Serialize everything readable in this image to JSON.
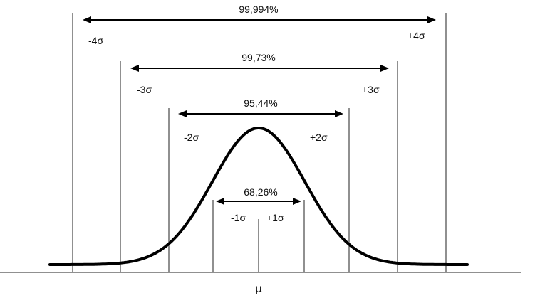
{
  "mean_label": "μ",
  "intervals": [
    {
      "k": 1,
      "percent": "68,26%",
      "minus_label": "-1σ",
      "plus_label": "+1σ"
    },
    {
      "k": 2,
      "percent": "95,44%",
      "minus_label": "-2σ",
      "plus_label": "+2σ"
    },
    {
      "k": 3,
      "percent": "99,73%",
      "minus_label": "-3σ",
      "plus_label": "+3σ"
    },
    {
      "k": 4,
      "percent": "99,994%",
      "minus_label": "-4σ",
      "plus_label": "+4σ"
    }
  ],
  "colors": {
    "line": "#000000",
    "background": "#ffffff"
  }
}
